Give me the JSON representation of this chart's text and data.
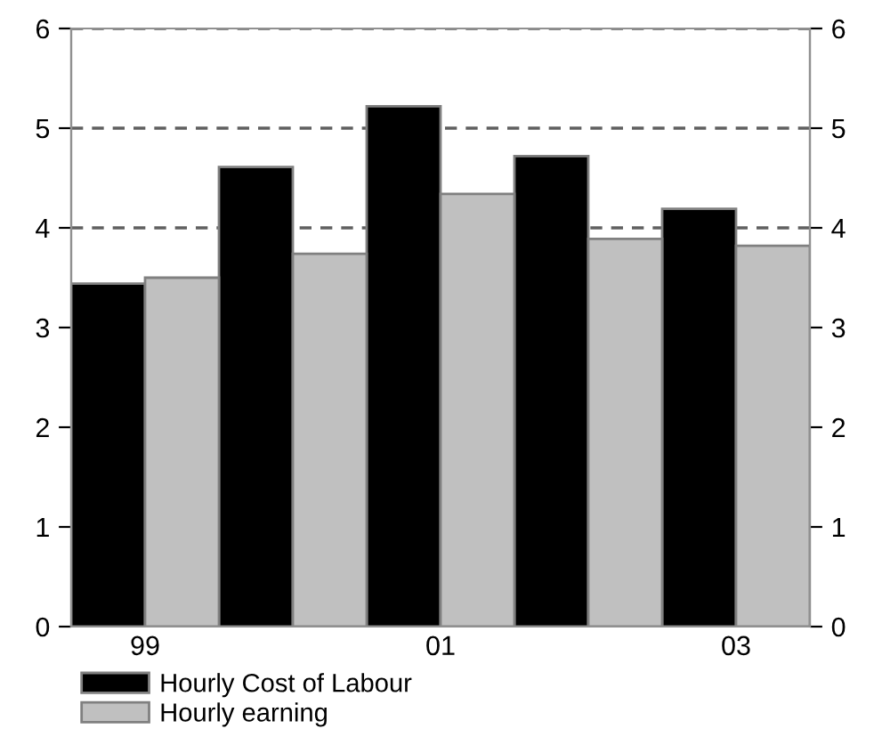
{
  "chart_data": {
    "type": "bar",
    "categories": [
      "99",
      null,
      "01",
      null,
      "03"
    ],
    "series": [
      {
        "name": "Hourly Cost of Labour",
        "color": "#000000",
        "values": [
          3.44,
          4.61,
          5.22,
          4.72,
          4.19
        ]
      },
      {
        "name": "Hourly earning",
        "color": "#c0c0c0",
        "values": [
          3.5,
          3.74,
          4.34,
          3.89,
          3.82
        ]
      }
    ],
    "ylim": [
      0,
      6
    ],
    "yticks": [
      0,
      1,
      2,
      3,
      4,
      5,
      6
    ],
    "y2lim": [
      0,
      6
    ],
    "y2ticks": [
      0,
      1,
      2,
      3,
      4,
      5,
      6
    ],
    "grid": "y",
    "legend": "bottom left"
  }
}
